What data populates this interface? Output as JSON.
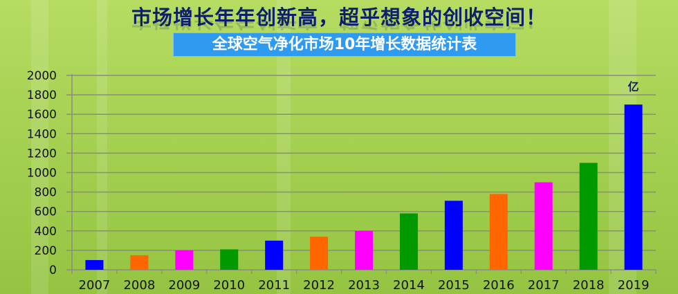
{
  "header": {
    "title": "市场增长年年创新高，超乎想象的创收空间！",
    "banner": "全球空气净化市场10年增长数据统计表"
  },
  "chart_data": {
    "type": "bar",
    "title": "全球空气净化市场10年增长数据统计表",
    "unit_label": "亿",
    "categories": [
      "2007",
      "2008",
      "2009",
      "2010",
      "2011",
      "2012",
      "2013",
      "2014",
      "2015",
      "2016",
      "2017",
      "2018",
      "2019"
    ],
    "values": [
      100,
      150,
      200,
      210,
      300,
      340,
      400,
      580,
      710,
      780,
      900,
      1100,
      1700
    ],
    "bar_colors": [
      "#0000ff",
      "#ff6600",
      "#ff00ff",
      "#009900",
      "#0000ff",
      "#ff6600",
      "#ff00ff",
      "#009900",
      "#0000ff",
      "#ff6600",
      "#ff00ff",
      "#009900",
      "#0000ff"
    ],
    "ylim": [
      0,
      2000
    ],
    "yticks": [
      0,
      200,
      400,
      600,
      800,
      1000,
      1200,
      1400,
      1600,
      1800,
      2000
    ],
    "grid": true,
    "xlabel": "",
    "ylabel": ""
  }
}
